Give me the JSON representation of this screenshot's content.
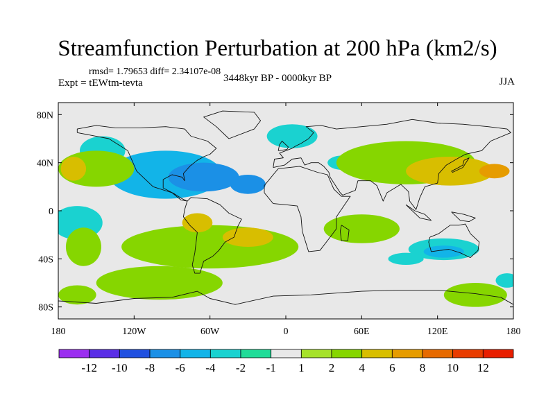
{
  "chart_data": {
    "type": "heatmap",
    "title": "Streamfunction Perturbation at 200 hPa (km2/s)",
    "stats_text": "rmsd= 1.79653 diff= 2.34107e-08",
    "experiment_text": "Expt = tEWtm-tevta",
    "period_text": "3448kyr BP - 0000kyr BP",
    "season": "JJA",
    "x_range": [
      -180,
      180
    ],
    "y_range": [
      -90,
      90
    ],
    "x_ticks": [
      {
        "value": -180,
        "label": "180"
      },
      {
        "value": -120,
        "label": "120W"
      },
      {
        "value": -60,
        "label": "60W"
      },
      {
        "value": 0,
        "label": "0"
      },
      {
        "value": 60,
        "label": "60E"
      },
      {
        "value": 120,
        "label": "120E"
      },
      {
        "value": 180,
        "label": "180"
      }
    ],
    "y_ticks": [
      {
        "value": 80,
        "label": "80N"
      },
      {
        "value": 40,
        "label": "40N"
      },
      {
        "value": 0,
        "label": "0"
      },
      {
        "value": -40,
        "label": "40S"
      },
      {
        "value": -80,
        "label": "80S"
      }
    ],
    "colorbar": {
      "levels": [
        "-12",
        "-10",
        "-8",
        "-6",
        "-4",
        "-2",
        "-1",
        "1",
        "2",
        "4",
        "6",
        "8",
        "10",
        "12"
      ],
      "colors": [
        "#9b2ef0",
        "#5a2ee6",
        "#2050e0",
        "#1b90e6",
        "#12b4e8",
        "#1ad2d0",
        "#20dc98",
        "#e8e8e8",
        "#a6e22a",
        "#86d600",
        "#d8be00",
        "#e69c00",
        "#e66a00",
        "#e83c00",
        "#e81e00"
      ]
    },
    "field_regions": [
      {
        "level": "-2",
        "lon": -145,
        "lat": 50,
        "rlon": 18,
        "rlat": 12
      },
      {
        "level": "-4",
        "lon": -95,
        "lat": 30,
        "rlon": 45,
        "rlat": 20
      },
      {
        "level": "-6",
        "lon": -65,
        "lat": 28,
        "rlon": 28,
        "rlat": 12
      },
      {
        "level": "-6",
        "lon": -30,
        "lat": 22,
        "rlon": 14,
        "rlat": 8
      },
      {
        "level": "-2",
        "lon": 5,
        "lat": 62,
        "rlon": 20,
        "rlat": 10
      },
      {
        "level": "-2",
        "lon": 45,
        "lat": 40,
        "rlon": 12,
        "rlat": 6
      },
      {
        "level": "-2",
        "lon": 125,
        "lat": -32,
        "rlon": 28,
        "rlat": 9
      },
      {
        "level": "-4",
        "lon": 125,
        "lat": -34,
        "rlon": 16,
        "rlat": 5
      },
      {
        "level": "-2",
        "lon": 95,
        "lat": -40,
        "rlon": 14,
        "rlat": 5
      },
      {
        "level": "-2",
        "lon": 175,
        "lat": -58,
        "rlon": 9,
        "rlat": 6
      },
      {
        "level": "-2",
        "lon": -165,
        "lat": -10,
        "rlon": 20,
        "rlat": 14
      },
      {
        "level": "2",
        "lon": -160,
        "lat": -30,
        "rlon": 14,
        "rlat": 16
      },
      {
        "level": "2",
        "lon": -150,
        "lat": 35,
        "rlon": 30,
        "rlat": 15
      },
      {
        "level": "4",
        "lon": -168,
        "lat": 35,
        "rlon": 10,
        "rlat": 10
      },
      {
        "level": "2",
        "lon": -60,
        "lat": -30,
        "rlon": 70,
        "rlat": 18
      },
      {
        "level": "4",
        "lon": -30,
        "lat": -22,
        "rlon": 20,
        "rlat": 8
      },
      {
        "level": "4",
        "lon": -70,
        "lat": -10,
        "rlon": 12,
        "rlat": 8
      },
      {
        "level": "2",
        "lon": 95,
        "lat": 40,
        "rlon": 55,
        "rlat": 18
      },
      {
        "level": "4",
        "lon": 130,
        "lat": 33,
        "rlon": 35,
        "rlat": 12
      },
      {
        "level": "6",
        "lon": 165,
        "lat": 33,
        "rlon": 12,
        "rlat": 6
      },
      {
        "level": "2",
        "lon": 60,
        "lat": -15,
        "rlon": 30,
        "rlat": 12
      },
      {
        "level": "2",
        "lon": -100,
        "lat": -60,
        "rlon": 50,
        "rlat": 14
      },
      {
        "level": "2",
        "lon": 150,
        "lat": -70,
        "rlon": 25,
        "rlat": 10
      },
      {
        "level": "2",
        "lon": -165,
        "lat": -70,
        "rlon": 15,
        "rlat": 8
      }
    ]
  }
}
